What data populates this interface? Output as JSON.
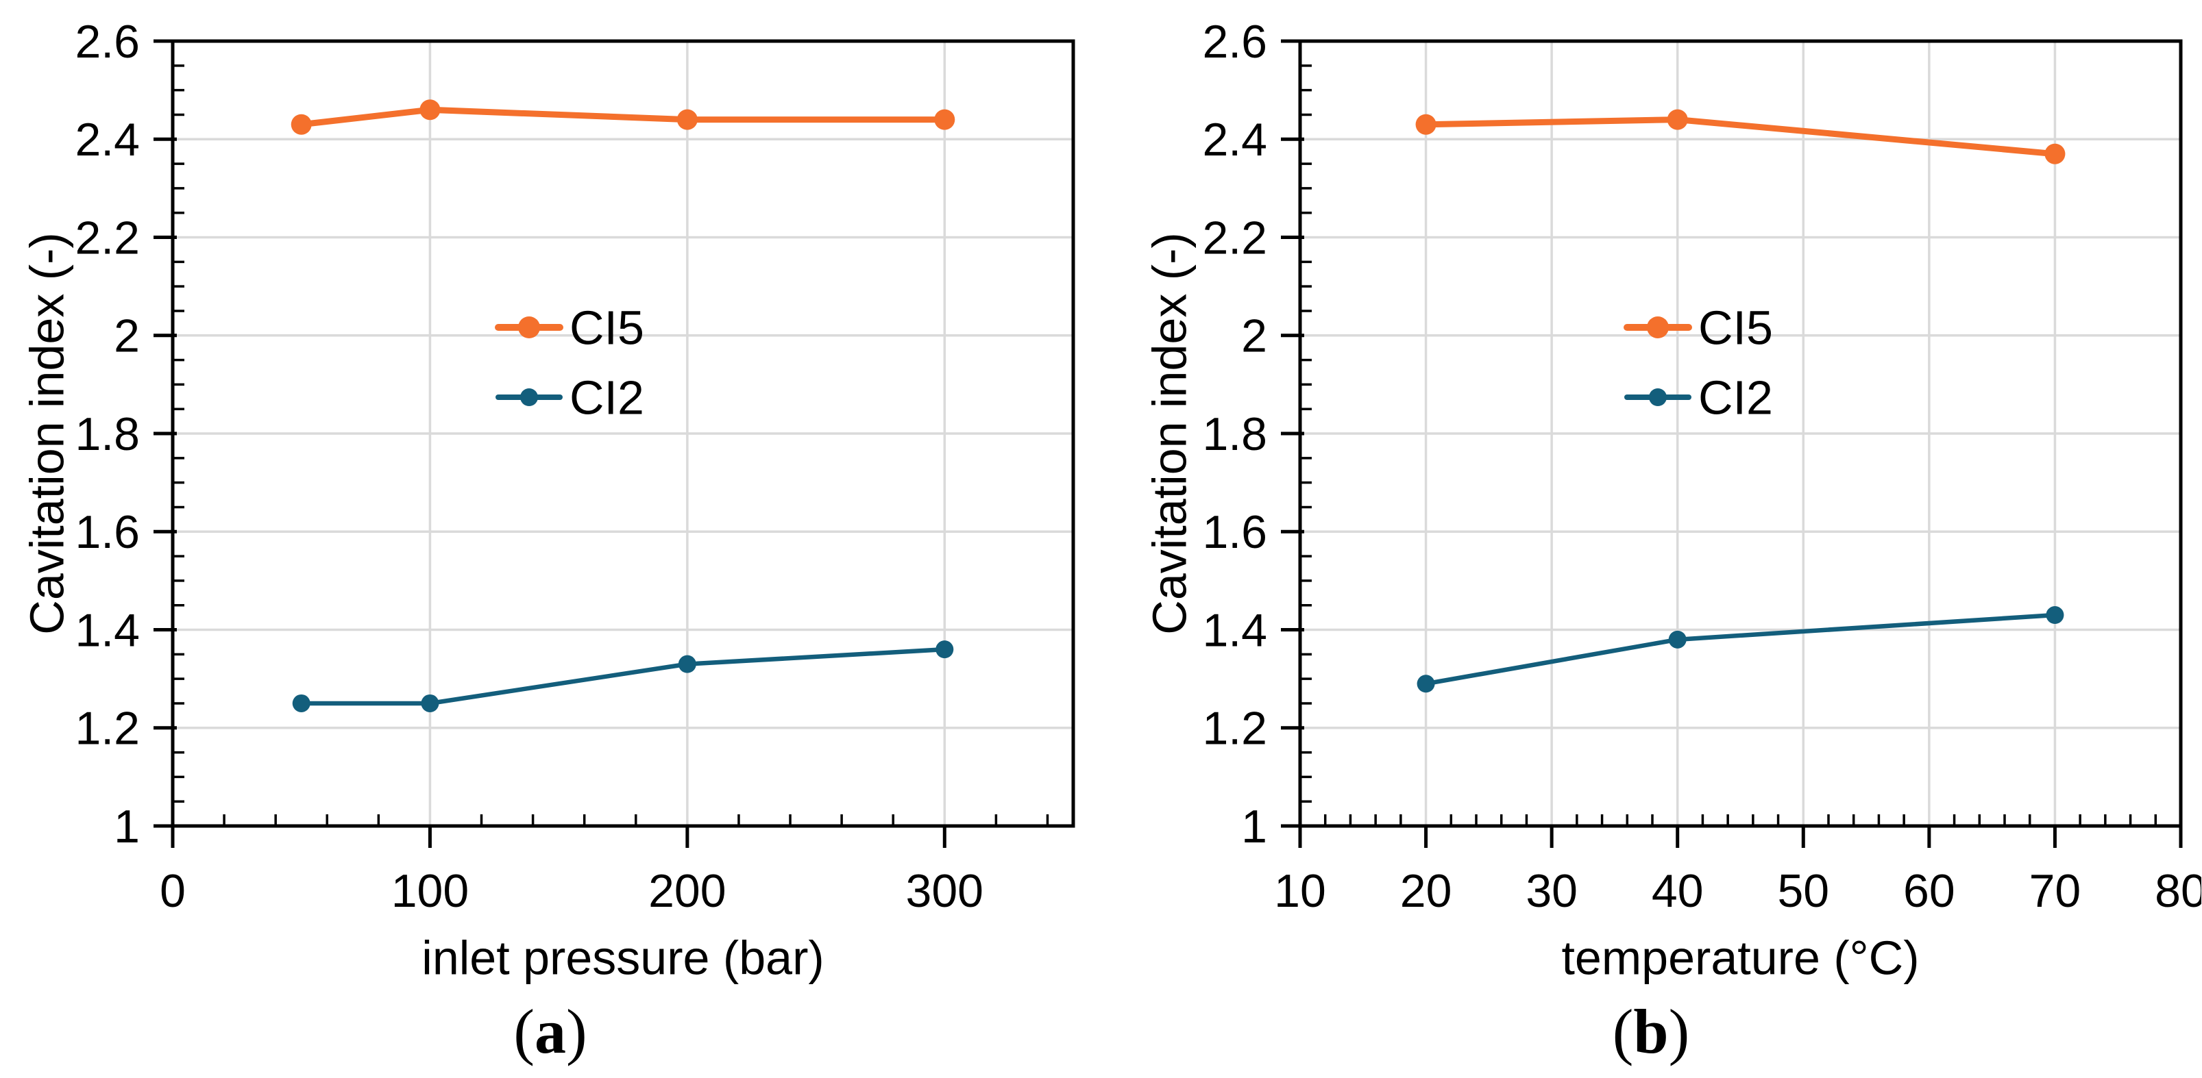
{
  "figure": {
    "description": "Two-panel line figure of cavitation index",
    "background": "#FFFFFF"
  },
  "colors": {
    "ci5_orange": "#F4702C",
    "ci2_teal": "#135E7C",
    "gridline": "#DADADA",
    "axis": "#000000",
    "text": "#000000",
    "background": "#FFFFFF"
  },
  "chart_data": [
    {
      "type": "line",
      "caption": "(a)",
      "title": "",
      "xlabel": "inlet pressure (bar)",
      "ylabel": "Cavitation index (-)",
      "xlim": [
        0,
        350
      ],
      "ylim": [
        1,
        2.6
      ],
      "x_major_ticks": [
        0,
        100,
        200,
        300
      ],
      "x_tick_labels": [
        "0",
        "100",
        "200",
        "300"
      ],
      "x_minor_step": 20,
      "y_major_step": 0.2,
      "y_minor_step": 0.05,
      "y_tick_labels": [
        "1",
        "1.2",
        "1.4",
        "1.6",
        "1.8",
        "2",
        "2.2",
        "2.4",
        "2.6"
      ],
      "grid": true,
      "legend_position": "inside-center",
      "legend_entries": [
        "CI5",
        "CI2"
      ],
      "series": [
        {
          "name": "CI5",
          "color_key": "ci5_orange",
          "x": [
            50,
            100,
            200,
            300
          ],
          "values": [
            2.43,
            2.46,
            2.44,
            2.44
          ]
        },
        {
          "name": "CI2",
          "color_key": "ci2_teal",
          "x": [
            50,
            100,
            200,
            300
          ],
          "values": [
            1.25,
            1.25,
            1.33,
            1.36
          ]
        }
      ]
    },
    {
      "type": "line",
      "caption": "(b)",
      "title": "",
      "xlabel": "temperature (°C)",
      "ylabel": "Cavitation index (-)",
      "xlim": [
        10,
        80
      ],
      "ylim": [
        1,
        2.6
      ],
      "x_major_ticks": [
        10,
        20,
        30,
        40,
        50,
        60,
        70,
        80
      ],
      "x_tick_labels": [
        "10",
        "20",
        "30",
        "40",
        "50",
        "60",
        "70",
        "80"
      ],
      "x_minor_step": 2,
      "y_major_step": 0.2,
      "y_minor_step": 0.05,
      "y_tick_labels": [
        "1",
        "1.2",
        "1.4",
        "1.6",
        "1.8",
        "2",
        "2.2",
        "2.4",
        "2.6"
      ],
      "grid": true,
      "legend_position": "inside-center",
      "legend_entries": [
        "CI5",
        "CI2"
      ],
      "series": [
        {
          "name": "CI5",
          "color_key": "ci5_orange",
          "x": [
            20,
            40,
            70
          ],
          "values": [
            2.43,
            2.44,
            2.37
          ]
        },
        {
          "name": "CI2",
          "color_key": "ci2_teal",
          "x": [
            20,
            40,
            70
          ],
          "values": [
            1.29,
            1.38,
            1.43
          ]
        }
      ]
    }
  ]
}
